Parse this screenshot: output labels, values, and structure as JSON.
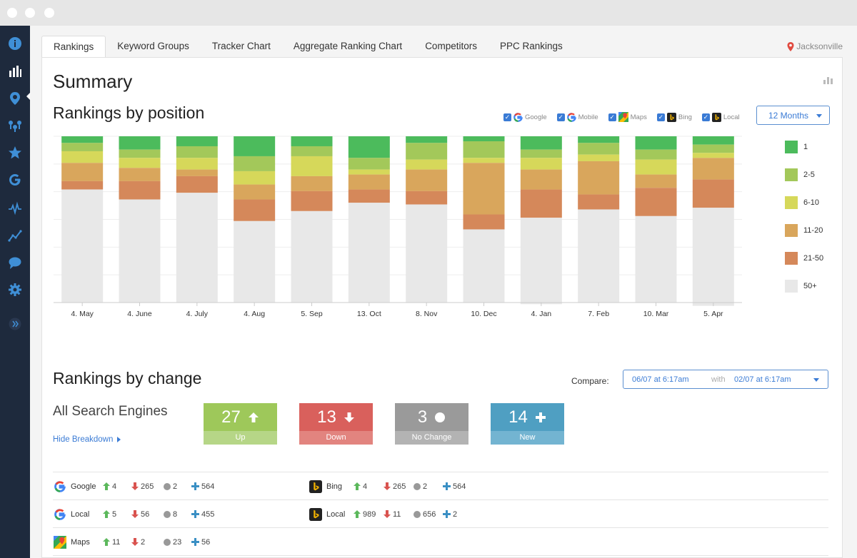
{
  "tabs": [
    "Rankings",
    "Keyword Groups",
    "Tracker Chart",
    "Aggregate Ranking Chart",
    "Competitors",
    "PPC Rankings"
  ],
  "location": "Jacksonville",
  "summary_title": "Summary",
  "positions_title": "Rankings by position",
  "engines": [
    "Google",
    "Mobile",
    "Maps",
    "Bing",
    "Local"
  ],
  "period": "12 Months",
  "legend": [
    {
      "label": "1",
      "color": "#4cbb5c"
    },
    {
      "label": "2-5",
      "color": "#a3c85a"
    },
    {
      "label": "6-10",
      "color": "#d6d85a"
    },
    {
      "label": "11-20",
      "color": "#d9a65c"
    },
    {
      "label": "21-50",
      "color": "#d5885a"
    },
    {
      "label": "50+",
      "color": "#e8e8e8"
    }
  ],
  "chart_data": {
    "type": "bar",
    "stacked": true,
    "ylim": [
      0,
      100
    ],
    "categories": [
      "4. May",
      "4. June",
      "4. July",
      "4. Aug",
      "5. Sep",
      "13. Oct",
      "8. Nov",
      "10. Dec",
      "4. Jan",
      "7. Feb",
      "10. Mar",
      "5. Apr"
    ],
    "series": [
      {
        "name": "1",
        "values": [
          4,
          8,
          6,
          12,
          6,
          13,
          4,
          3,
          8,
          4,
          8,
          5
        ]
      },
      {
        "name": "2-5",
        "values": [
          5,
          5,
          7,
          9,
          6,
          7,
          10,
          10,
          5,
          7,
          6,
          5
        ]
      },
      {
        "name": "6-10",
        "values": [
          7,
          6,
          7,
          8,
          12,
          3,
          6,
          3,
          7,
          4,
          9,
          3
        ]
      },
      {
        "name": "11-20",
        "values": [
          11,
          8,
          4,
          9,
          9,
          9,
          13,
          31,
          12,
          20,
          8,
          13
        ]
      },
      {
        "name": "21-50",
        "values": [
          5,
          11,
          10,
          13,
          12,
          8,
          8,
          9,
          17,
          9,
          17,
          17
        ]
      },
      {
        "name": "50+",
        "values": [
          68,
          62,
          66,
          49,
          55,
          60,
          59,
          44,
          52,
          56,
          52,
          59
        ]
      }
    ]
  },
  "change_title": "Rankings by change",
  "compare_label": "Compare:",
  "compare_from": "06/07 at 6:17am",
  "compare_with": "with",
  "compare_to": "02/07 at 6:17am",
  "all_engines": "All Search Engines",
  "hide_breakdown": "Hide Breakdown",
  "change_boxes": [
    {
      "value": "27",
      "label": "Up"
    },
    {
      "value": "13",
      "label": "Down"
    },
    {
      "value": "3",
      "label": "No Change"
    },
    {
      "value": "14",
      "label": "New"
    }
  ],
  "breakdown": [
    {
      "left": {
        "name": "Google",
        "up": "4",
        "down": "265",
        "same": "2",
        "new": "564"
      },
      "right": {
        "name": "Bing",
        "up": "4",
        "down": "265",
        "same": "2",
        "new": "564"
      }
    },
    {
      "left": {
        "name": "Local",
        "up": "5",
        "down": "56",
        "same": "8",
        "new": "455"
      },
      "right": {
        "name": "Local",
        "up": "989",
        "down": "11",
        "same": "656",
        "new": "2"
      }
    },
    {
      "left": {
        "name": "Maps",
        "up": "11",
        "down": "2",
        "same": "23",
        "new": "56"
      }
    }
  ]
}
